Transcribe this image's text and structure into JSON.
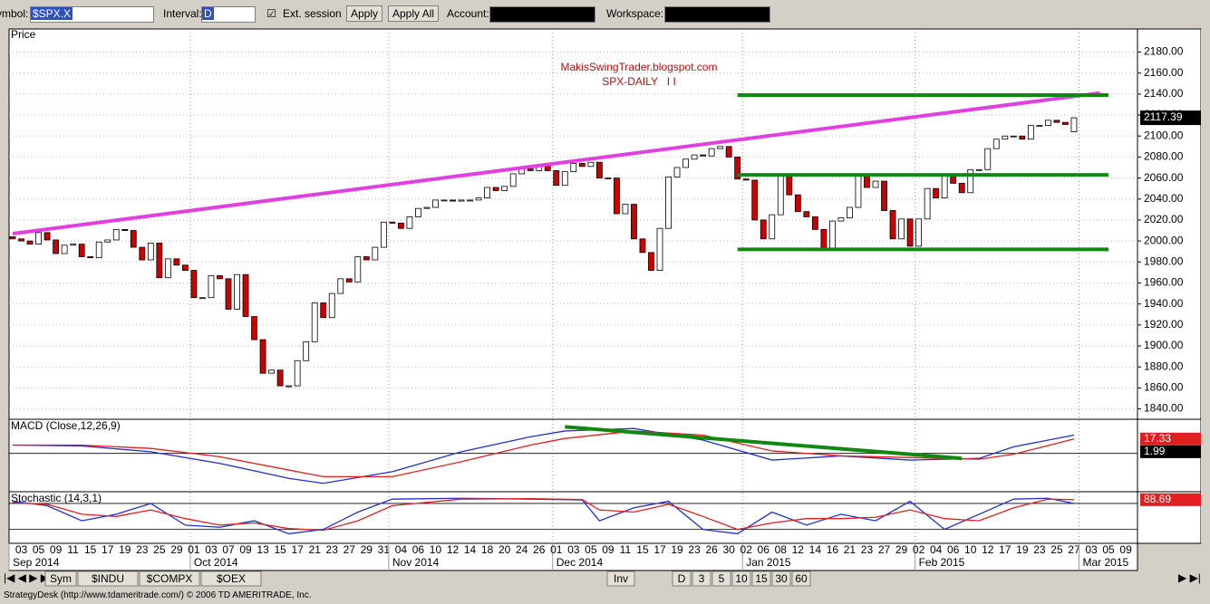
{
  "toolbar": {
    "symbol_label": "Symbol:",
    "symbol": "$SPX.X",
    "interval_label": "Interval:",
    "interval": "D",
    "ext_session": "Ext. session",
    "apply": "Apply",
    "apply_all": "Apply All",
    "account_label": "Account:",
    "workspace_label": "Workspace:"
  },
  "tabs": {
    "symbols": [
      "Sym",
      "$INDU",
      "$COMPX",
      "$OEX"
    ],
    "inv": "Inv",
    "intervals": [
      "D",
      "3",
      "5",
      "10",
      "15",
      "30",
      "60"
    ]
  },
  "status_bar": "StrategyDesk (http://www.tdameritrade.com/) © 2006 TD AMERITRADE, Inc.",
  "chart_data": [
    {
      "type": "candlestick",
      "title": "MakisSwingTrader.blogspot.com",
      "subtitle": "SPX-DAILY   I I",
      "y_label": "Price",
      "months": [
        {
          "label": "Sep 2014",
          "categories": [
            null,
            "03",
            null,
            "05",
            null,
            "09",
            null,
            "11",
            null,
            "15",
            null,
            "17",
            null,
            "19",
            null,
            "23",
            null,
            "25",
            null,
            "29",
            null
          ]
        },
        {
          "label": "Oct 2014",
          "categories": [
            "01",
            null,
            "03",
            null,
            "07",
            null,
            "09",
            null,
            "13",
            null,
            "15",
            null,
            "17",
            null,
            "21",
            null,
            "23",
            null,
            "27",
            null,
            "29",
            null,
            "31"
          ]
        },
        {
          "label": "Nov 2014",
          "categories": [
            null,
            "04",
            null,
            "06",
            null,
            "10",
            null,
            "12",
            null,
            "14",
            null,
            "18",
            null,
            "20",
            null,
            "24",
            null,
            "26",
            null
          ]
        },
        {
          "label": "Dec 2014",
          "categories": [
            "01",
            null,
            "03",
            null,
            "05",
            null,
            "09",
            null,
            "11",
            null,
            "15",
            null,
            "17",
            null,
            "19",
            null,
            "23",
            null,
            "26",
            null,
            "30",
            null
          ]
        },
        {
          "label": "Jan 2015",
          "categories": [
            "02",
            null,
            "06",
            null,
            "08",
            null,
            "12",
            null,
            "14",
            null,
            "16",
            null,
            "21",
            null,
            "23",
            null,
            "27",
            null,
            "29",
            null
          ]
        },
        {
          "label": "Feb 2015",
          "categories": [
            "02",
            null,
            "04",
            null,
            "06",
            null,
            "10",
            null,
            "12",
            null,
            "17",
            null,
            "19",
            null,
            "23",
            null,
            "25",
            null,
            "27"
          ]
        },
        {
          "label": "Mar 2015",
          "categories": [
            null,
            "03",
            null,
            "05",
            null,
            "09"
          ]
        }
      ],
      "open": [
        2004,
        2002,
        2000,
        1997,
        2008,
        2001,
        1988,
        1996,
        1997,
        1985,
        1984,
        1999,
        2001,
        2011,
        2010,
        1994,
        1982,
        1998,
        1965,
        1983,
        1977,
        1972,
        1946,
        1946,
        1967,
        1964,
        1935,
        1968,
        1928,
        1906,
        1874,
        1877,
        1862,
        1862,
        1886,
        1904,
        1941,
        1927,
        1950,
        1964,
        1961,
        1985,
        1982,
        1994,
        2018,
        2017,
        2012,
        2023,
        2031,
        2032,
        2039,
        2039,
        2038,
        2039,
        2039,
        2041,
        2051,
        2048,
        2052,
        2064,
        2069,
        2067,
        2072,
        2067,
        2053,
        2066,
        2074,
        2071,
        2075,
        2060,
        2060,
        2026,
        2035,
        2002,
        1989,
        1972,
        2012,
        2061,
        2070,
        2078,
        2082,
        2081,
        2088,
        2090,
        2080,
        2059,
        2058,
        2020,
        2002,
        2025,
        2062,
        2044,
        2028,
        2023,
        2011,
        1992,
        2019,
        2022,
        2032,
        2063,
        2051,
        2057,
        2029,
        2002,
        2021,
        1995,
        2021,
        2050,
        2041,
        2062,
        2055,
        2046,
        2068,
        2068,
        2088,
        2097,
        2100,
        2100,
        2097,
        2110,
        2110,
        2115,
        2113,
        2104
      ],
      "close": [
        2002,
        2000,
        1997,
        2008,
        2001,
        1988,
        1996,
        1997,
        1985,
        1984,
        1999,
        2001,
        2011,
        2010,
        1994,
        1982,
        1998,
        1965,
        1983,
        1977,
        1972,
        1946,
        1946,
        1967,
        1964,
        1935,
        1968,
        1928,
        1906,
        1874,
        1877,
        1862,
        1862,
        1886,
        1904,
        1941,
        1927,
        1950,
        1964,
        1961,
        1985,
        1982,
        1994,
        2018,
        2017,
        2012,
        2023,
        2031,
        2032,
        2039,
        2039,
        2038,
        2039,
        2039,
        2041,
        2051,
        2048,
        2052,
        2064,
        2069,
        2067,
        2072,
        2067,
        2053,
        2066,
        2074,
        2071,
        2075,
        2060,
        2060,
        2026,
        2035,
        2002,
        1989,
        1972,
        2012,
        2061,
        2070,
        2078,
        2082,
        2081,
        2088,
        2090,
        2080,
        2059,
        2058,
        2020,
        2002,
        2025,
        2062,
        2044,
        2028,
        2023,
        2011,
        1992,
        2019,
        2022,
        2032,
        2063,
        2051,
        2057,
        2029,
        2002,
        2021,
        1995,
        2021,
        2050,
        2041,
        2062,
        2055,
        2046,
        2068,
        2068,
        2088,
        2097,
        2100,
        2100,
        2097,
        2110,
        2110,
        2115,
        2113,
        2111,
        2117.39
      ],
      "up_color": "#ffffff",
      "down_color": "#cc0000",
      "ylim": [
        1831,
        2202
      ],
      "yticks": [
        {
          "value": 1840,
          "label": "1840.00"
        },
        {
          "value": 1860,
          "label": "1860.00"
        },
        {
          "value": 1880,
          "label": "1880.00"
        },
        {
          "value": 1900,
          "label": "1900.00"
        },
        {
          "value": 1920,
          "label": "1920.00"
        },
        {
          "value": 1940,
          "label": "1940.00"
        },
        {
          "value": 1960,
          "label": "1960.00"
        },
        {
          "value": 1980,
          "label": "1980.00"
        },
        {
          "value": 2000,
          "label": "2000.00"
        },
        {
          "value": 2020,
          "label": "2020.00"
        },
        {
          "value": 2040,
          "label": "2040.00"
        },
        {
          "value": 2060,
          "label": "2060.00"
        },
        {
          "value": 2080,
          "label": "2080.00"
        },
        {
          "value": 2100,
          "label": "2100.00"
        },
        {
          "value": 2120,
          "label": "2120.00"
        },
        {
          "value": 2140,
          "label": "2140.00"
        },
        {
          "value": 2160,
          "label": "2160.00"
        },
        {
          "value": 2180,
          "label": "2180.00"
        }
      ],
      "grid": true,
      "last_price": 2117.39,
      "trendlines": [
        {
          "color": "#e040e0",
          "points": [
            [
              0,
              2007
            ],
            [
              126,
              2141
            ]
          ]
        },
        {
          "color": "#118811",
          "points": [
            [
              84,
              2139
            ],
            [
              127,
              2139
            ]
          ]
        },
        {
          "color": "#118811",
          "points": [
            [
              84,
              2063
            ],
            [
              127,
              2063
            ]
          ]
        },
        {
          "color": "#118811",
          "points": [
            [
              84,
              1992
            ],
            [
              127,
              1992
            ]
          ]
        }
      ]
    },
    {
      "type": "line",
      "title": "MACD (Close,12,26,9)",
      "ylim": [
        -45,
        40
      ],
      "reference_lines": [
        0
      ],
      "series": [
        {
          "color": "#2030d0",
          "x": [
            0,
            8,
            16,
            24,
            32,
            36,
            44,
            52,
            60,
            64,
            72,
            80,
            88,
            96,
            104,
            112,
            116,
            123
          ],
          "values": [
            10,
            9,
            2,
            -12,
            -30,
            -36,
            -22,
            2,
            20,
            27,
            30,
            16,
            -8,
            -3,
            -8,
            -6,
            8,
            22
          ]
        },
        {
          "color": "#e02020",
          "x": [
            0,
            8,
            16,
            24,
            32,
            36,
            44,
            52,
            60,
            64,
            72,
            80,
            88,
            96,
            104,
            112,
            116,
            123
          ],
          "values": [
            10,
            10,
            6,
            -4,
            -20,
            -28,
            -28,
            -10,
            10,
            18,
            27,
            22,
            3,
            -3,
            -5,
            -7,
            -1,
            17.33
          ]
        }
      ],
      "trendlines": [
        {
          "color": "#118811",
          "points": [
            [
              64,
              32
            ],
            [
              110,
              -6
            ]
          ]
        }
      ],
      "last_values": [
        17.33,
        1.99
      ]
    },
    {
      "type": "line",
      "title": "Stochastic (14,3,1)",
      "ylim": [
        -10,
        105
      ],
      "reference_lines": [
        20,
        80
      ],
      "series": [
        {
          "color": "#2030d0",
          "x": [
            0,
            4,
            8,
            12,
            16,
            20,
            24,
            28,
            32,
            36,
            40,
            44,
            52,
            60,
            66,
            68,
            72,
            76,
            80,
            84,
            88,
            92,
            96,
            100,
            104,
            108,
            112,
            116,
            120,
            123
          ],
          "values": [
            85,
            75,
            40,
            55,
            80,
            30,
            25,
            40,
            10,
            20,
            60,
            90,
            92,
            90,
            88,
            40,
            70,
            85,
            20,
            10,
            60,
            30,
            55,
            40,
            85,
            20,
            55,
            90,
            92,
            80
          ]
        },
        {
          "color": "#e02020",
          "x": [
            0,
            4,
            8,
            12,
            16,
            20,
            24,
            28,
            32,
            36,
            40,
            44,
            52,
            60,
            66,
            68,
            72,
            76,
            80,
            84,
            88,
            92,
            96,
            100,
            104,
            108,
            112,
            116,
            120,
            123
          ],
          "values": [
            82,
            78,
            55,
            50,
            65,
            45,
            30,
            35,
            22,
            18,
            40,
            75,
            90,
            91,
            89,
            65,
            60,
            78,
            50,
            20,
            35,
            45,
            45,
            48,
            65,
            45,
            40,
            70,
            90,
            88.69
          ]
        }
      ],
      "last_values": [
        88.69
      ]
    }
  ]
}
